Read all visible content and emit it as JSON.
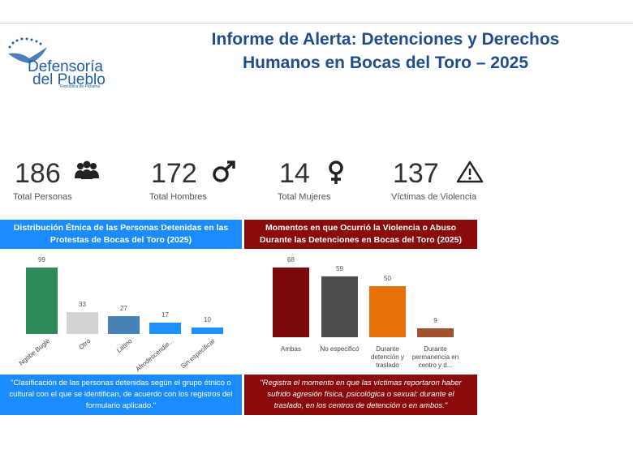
{
  "header": {
    "title": "Informe de Alerta: Detenciones y Derechos Humanos en Bocas del Toro – 2025",
    "logo": {
      "line1": "Defensoría",
      "line2": "del Pueblo",
      "subtitle": "República de Panamá"
    }
  },
  "kpis": [
    {
      "value": 186,
      "label": "Total Personas"
    },
    {
      "value": 172,
      "label": "Total Hombres"
    },
    {
      "value": 14,
      "label": "Total Mujeres"
    },
    {
      "value": 137,
      "label": "Víctimas de Violencia"
    }
  ],
  "chart_data": [
    {
      "type": "bar",
      "title": "Distribución Étnica de las Personas Detenidas en las Protestas de Bocas del Toro (2025)",
      "header_color": "#1a8cff",
      "categories": [
        "Ngöbe Buglé",
        "Otro",
        "Latino",
        "Afrodescendie...",
        "Sin especificar"
      ],
      "values": [
        99,
        33,
        27,
        17,
        10
      ],
      "colors": [
        "#2e8b57",
        "#d3d3d3",
        "#4682b4",
        "#1e90ff",
        "#1e90ff"
      ],
      "x_label_rotation": -40,
      "caption": "\"Clasificación de las personas detenidas según el grupo étnico o cultural con el que se identifican, de acuerdo con los registros del formulario aplicado.\""
    },
    {
      "type": "bar",
      "title": "Momentos en que Ocurrió la Violencia o Abuso Durante las Detenciones en Bocas del Toro (2025)",
      "header_color": "#8b0a0a",
      "categories": [
        "Ambas",
        "No especificó",
        "Durante detención y traslado",
        "Durante permanencia en centro y d..."
      ],
      "values": [
        68,
        59,
        50,
        9
      ],
      "colors": [
        "#7b0a0a",
        "#4d4d4d",
        "#e8710a",
        "#a0522d"
      ],
      "x_label_rotation": 0,
      "caption": "\"Registra el momento en que las víctimas reportaron haber sufrido agresión física, psicológica o sexual: durante el traslado, en los centros de detención o en ambos.\""
    }
  ]
}
